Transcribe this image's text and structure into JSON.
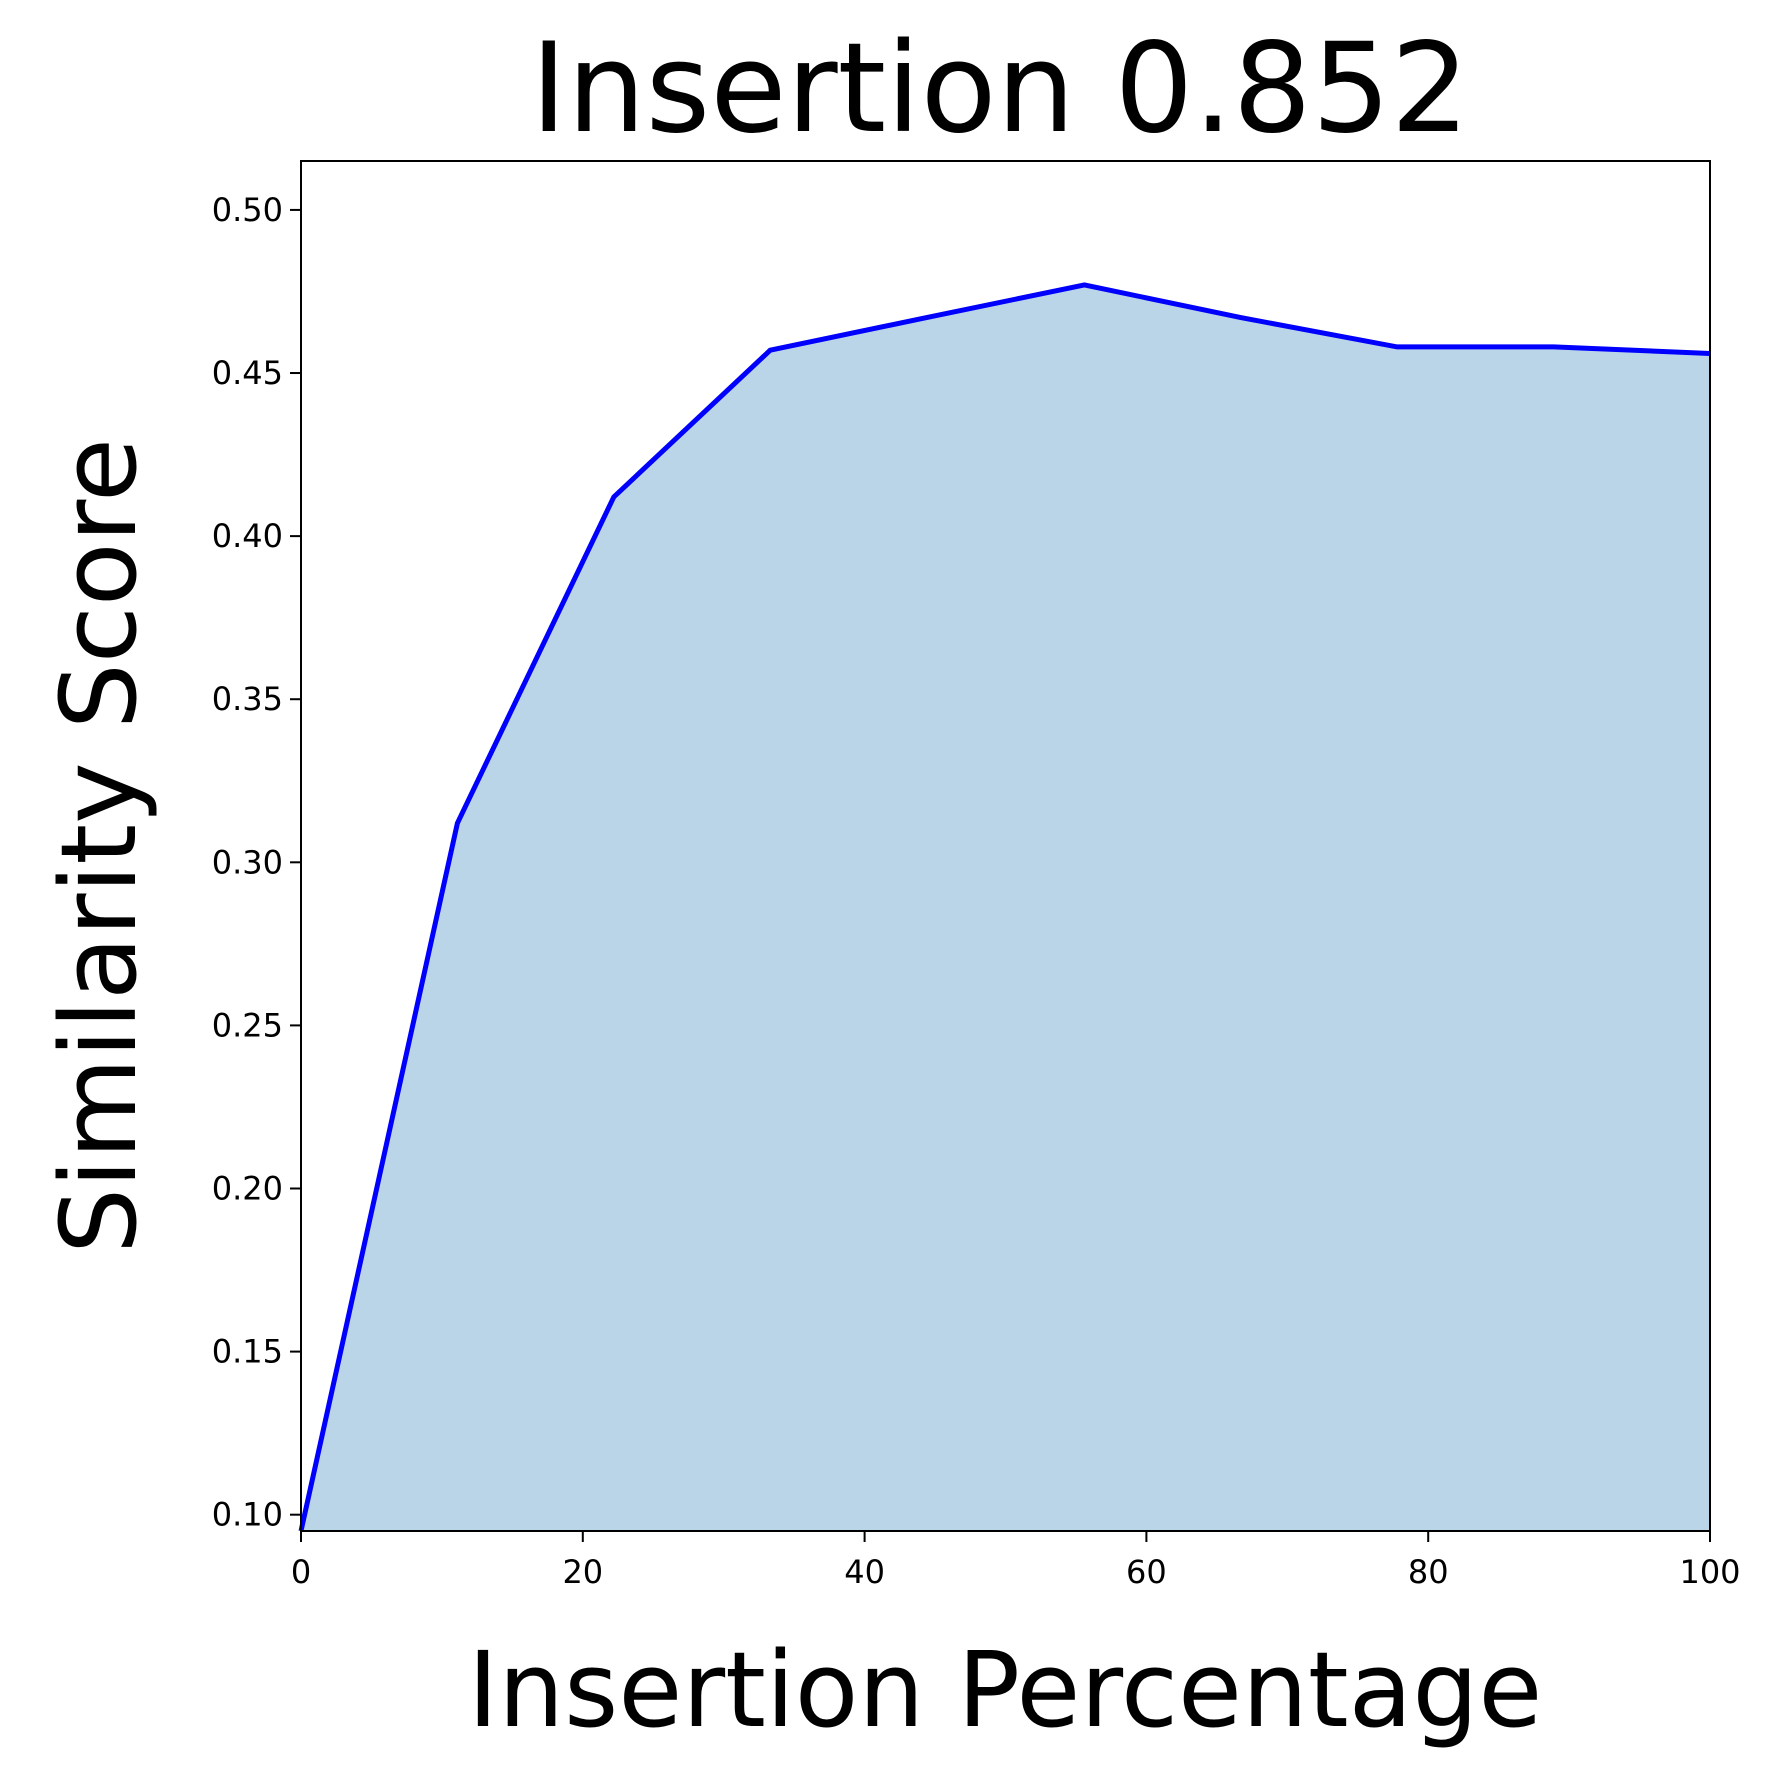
{
  "chart_data": {
    "type": "area",
    "title": "Insertion 0.852",
    "xlabel": "Insertion Percentage",
    "ylabel": "Similarity Score",
    "xlim": [
      0,
      100
    ],
    "ylim": [
      0.095,
      0.515
    ],
    "xticks": [
      0,
      20,
      40,
      60,
      80,
      100
    ],
    "xtick_labels": [
      "0",
      "20",
      "40",
      "60",
      "80",
      "100"
    ],
    "yticks": [
      0.1,
      0.15,
      0.2,
      0.25,
      0.3,
      0.35,
      0.4,
      0.45,
      0.5
    ],
    "ytick_labels": [
      "0.10",
      "0.15",
      "0.20",
      "0.25",
      "0.30",
      "0.35",
      "0.40",
      "0.45",
      "0.50"
    ],
    "grid": false,
    "legend": "none",
    "series": [
      {
        "x": [
          0,
          11.1,
          22.2,
          33.3,
          44.4,
          55.6,
          66.7,
          77.8,
          88.9,
          100
        ],
        "values": [
          0.095,
          0.312,
          0.412,
          0.457,
          0.467,
          0.477,
          0.467,
          0.458,
          0.458,
          0.456
        ],
        "line_color": "#0000ff",
        "fill_color": "#bad4e8"
      }
    ]
  }
}
